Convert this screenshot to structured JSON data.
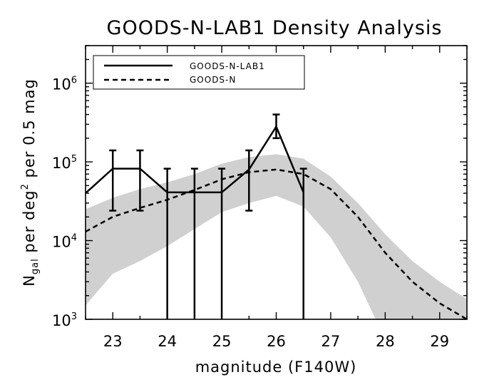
{
  "chart_data": {
    "type": "line",
    "title": "GOODS-N-LAB1 Density Analysis",
    "xlabel": "magnitude (F140W)",
    "ylabel": {
      "n": "N",
      "gal": "gal",
      "per": " per deg",
      "sq": "2",
      "rest": " per 0.5 mag"
    },
    "xlim": [
      22.5,
      29.5
    ],
    "ylim": [
      1000,
      3000000
    ],
    "yscale": "log",
    "x_ticks": [
      "23",
      "24",
      "25",
      "26",
      "27",
      "28",
      "29"
    ],
    "y_ticks": [
      {
        "base": "10",
        "exp": "3",
        "value": 1000
      },
      {
        "base": "10",
        "exp": "4",
        "value": 10000
      },
      {
        "base": "10",
        "exp": "5",
        "value": 100000
      },
      {
        "base": "10",
        "exp": "6",
        "value": 1000000
      }
    ],
    "legend": {
      "position": "top-left",
      "entries": [
        {
          "name": "GOODS-N-LAB1",
          "style": "solid"
        },
        {
          "name": "GOODS-N",
          "style": "dashed"
        }
      ]
    },
    "series": [
      {
        "name": "GOODS-N-LAB1",
        "style": "solid",
        "x": [
          22.5,
          23.0,
          23.5,
          24.0,
          24.5,
          25.0,
          25.5,
          26.0,
          26.5
        ],
        "y": [
          40000,
          82000,
          82000,
          41000,
          41000,
          41000,
          80000,
          280000,
          41000
        ],
        "err_low": [
          null,
          24000,
          24000,
          1000,
          1000,
          1000,
          24000,
          200000,
          1000
        ],
        "err_high": [
          null,
          140000,
          140000,
          82000,
          82000,
          82000,
          140000,
          400000,
          82000
        ]
      },
      {
        "name": "GOODS-N",
        "style": "dashed",
        "x": [
          22.5,
          23.0,
          23.5,
          24.0,
          24.5,
          25.0,
          25.5,
          26.0,
          26.5,
          27.0,
          27.5,
          28.0,
          28.5,
          29.0,
          29.5
        ],
        "y": [
          13000,
          20000,
          26000,
          33000,
          44000,
          60000,
          74000,
          80000,
          70000,
          45000,
          20000,
          7000,
          3000,
          1600,
          1000
        ]
      }
    ],
    "band": {
      "color": "#d0d0d0",
      "x": [
        22.5,
        23.0,
        23.5,
        24.0,
        24.5,
        25.0,
        25.5,
        26.0,
        26.5,
        27.0,
        27.5,
        28.0,
        28.5,
        29.0,
        29.5
      ],
      "upper": [
        25000,
        35000,
        45000,
        55000,
        70000,
        95000,
        115000,
        125000,
        110000,
        65000,
        30000,
        12000,
        5500,
        3000,
        1800
      ],
      "lower": [
        1500,
        3800,
        5500,
        8500,
        14000,
        23000,
        30000,
        37000,
        27000,
        11000,
        3000,
        null,
        null,
        null,
        null
      ]
    }
  }
}
